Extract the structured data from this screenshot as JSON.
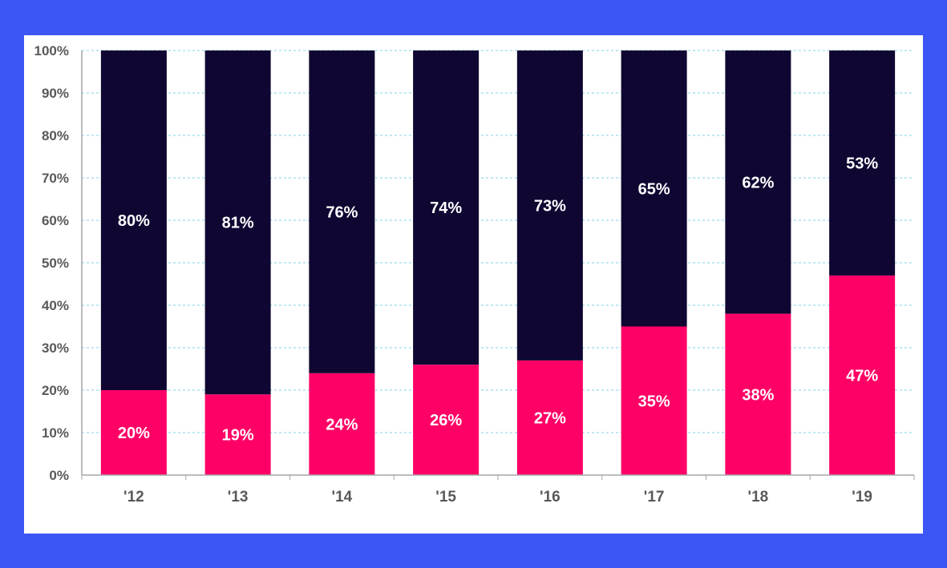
{
  "colors": {
    "background": "#3c55f5",
    "series_bottom": "#ff0066",
    "series_top": "#100632",
    "gridline": "#7fd3e8",
    "axis": "#a6a6a6",
    "tick_text": "#595959",
    "data_label_text": "#ffffff"
  },
  "chart_data": {
    "type": "bar",
    "stacked": true,
    "percent_stacked": true,
    "categories": [
      "'12",
      "'13",
      "'14",
      "'15",
      "'16",
      "'17",
      "'18",
      "'19"
    ],
    "series": [
      {
        "values": [
          20,
          19,
          24,
          26,
          27,
          35,
          38,
          47
        ],
        "labels": [
          "20%",
          "19%",
          "24%",
          "26%",
          "27%",
          "35%",
          "38%",
          "47%"
        ],
        "color": "#ff0066"
      },
      {
        "values": [
          80,
          81,
          76,
          74,
          73,
          65,
          62,
          53
        ],
        "labels": [
          "80%",
          "81%",
          "76%",
          "74%",
          "73%",
          "65%",
          "62%",
          "53%"
        ],
        "color": "#100632"
      }
    ],
    "y_ticks": [
      "0%",
      "10%",
      "20%",
      "30%",
      "40%",
      "50%",
      "60%",
      "70%",
      "80%",
      "90%",
      "100%"
    ],
    "ylim": [
      0,
      100
    ],
    "grid": true,
    "legend": "none",
    "title": "",
    "xlabel": "",
    "ylabel": ""
  }
}
